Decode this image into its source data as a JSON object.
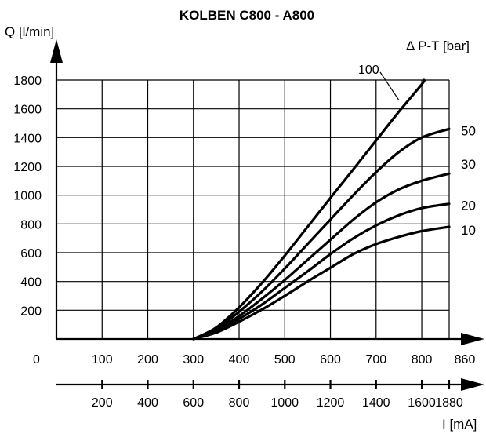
{
  "chart_data": {
    "type": "line",
    "title": "KOLBEN C800 - A800",
    "ylabel": "Q [l/min]",
    "xlabel": "I [mA]",
    "series_axis_label": "Δ P-T  [bar]",
    "origin_label": "0",
    "xlim": [
      0,
      860
    ],
    "ylim": [
      0,
      1800
    ],
    "x_ticks": [
      100,
      200,
      300,
      400,
      500,
      600,
      700,
      800,
      860
    ],
    "y_ticks": [
      200,
      400,
      600,
      800,
      1000,
      1200,
      1400,
      1600,
      1800
    ],
    "current_ticks": [
      200,
      400,
      600,
      800,
      1000,
      1200,
      1400,
      1600,
      1880
    ],
    "current_tick_positions": [
      100,
      200,
      300,
      400,
      500,
      600,
      700,
      800,
      860
    ],
    "grid": true,
    "series": [
      {
        "name": "100",
        "points": [
          [
            300,
            0
          ],
          [
            350,
            80
          ],
          [
            400,
            220
          ],
          [
            450,
            390
          ],
          [
            500,
            580
          ],
          [
            550,
            780
          ],
          [
            600,
            980
          ],
          [
            650,
            1180
          ],
          [
            700,
            1380
          ],
          [
            750,
            1580
          ],
          [
            800,
            1770
          ],
          [
            805,
            1800
          ]
        ]
      },
      {
        "name": "50",
        "points": [
          [
            300,
            0
          ],
          [
            350,
            70
          ],
          [
            400,
            190
          ],
          [
            450,
            330
          ],
          [
            500,
            490
          ],
          [
            550,
            660
          ],
          [
            600,
            830
          ],
          [
            650,
            1000
          ],
          [
            700,
            1160
          ],
          [
            750,
            1300
          ],
          [
            800,
            1400
          ],
          [
            860,
            1460
          ]
        ]
      },
      {
        "name": "30",
        "points": [
          [
            300,
            0
          ],
          [
            350,
            60
          ],
          [
            400,
            160
          ],
          [
            450,
            280
          ],
          [
            500,
            410
          ],
          [
            550,
            550
          ],
          [
            600,
            690
          ],
          [
            650,
            830
          ],
          [
            700,
            950
          ],
          [
            750,
            1040
          ],
          [
            800,
            1100
          ],
          [
            860,
            1150
          ]
        ]
      },
      {
        "name": "20",
        "points": [
          [
            300,
            0
          ],
          [
            350,
            55
          ],
          [
            400,
            140
          ],
          [
            450,
            240
          ],
          [
            500,
            355
          ],
          [
            550,
            470
          ],
          [
            600,
            590
          ],
          [
            650,
            700
          ],
          [
            700,
            790
          ],
          [
            750,
            860
          ],
          [
            800,
            910
          ],
          [
            860,
            940
          ]
        ]
      },
      {
        "name": "10",
        "points": [
          [
            300,
            0
          ],
          [
            350,
            45
          ],
          [
            400,
            120
          ],
          [
            450,
            205
          ],
          [
            500,
            300
          ],
          [
            550,
            400
          ],
          [
            600,
            495
          ],
          [
            650,
            590
          ],
          [
            700,
            660
          ],
          [
            750,
            710
          ],
          [
            800,
            750
          ],
          [
            860,
            780
          ]
        ]
      }
    ]
  }
}
